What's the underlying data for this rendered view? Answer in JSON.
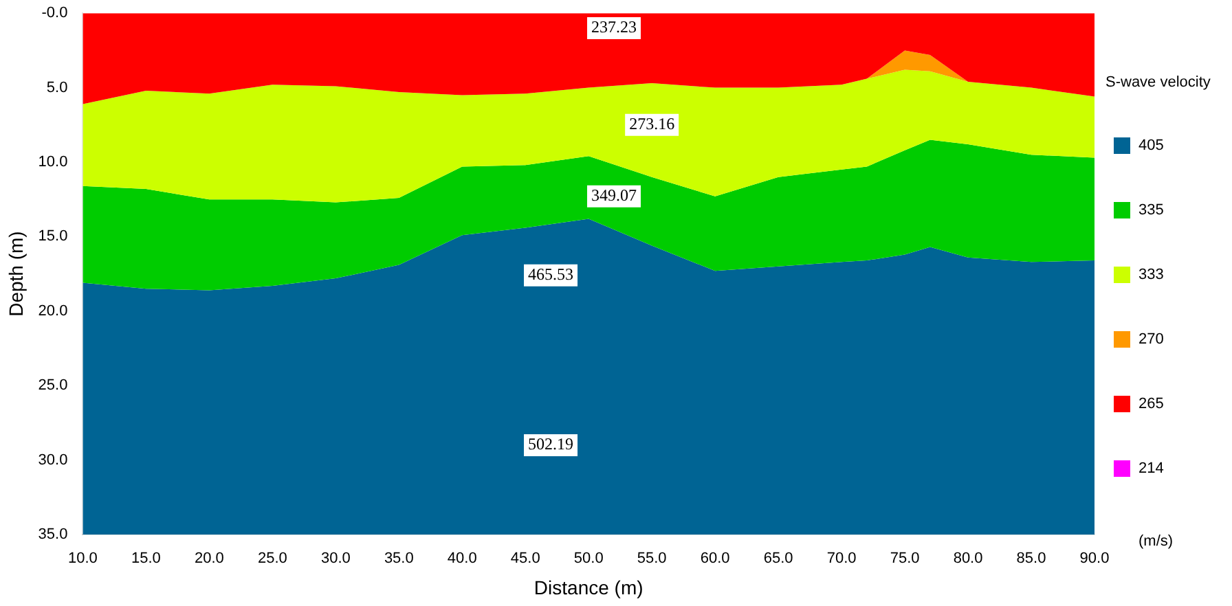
{
  "chart_data": {
    "type": "area",
    "stacked": true,
    "xlabel": "Distance (m)",
    "ylabel": "Depth (m)",
    "legend_title": "S-wave velocity",
    "legend": "right",
    "grid": false,
    "x": [
      10,
      15,
      20,
      25,
      30,
      35,
      40,
      45,
      50,
      55,
      60,
      65,
      70,
      72,
      75,
      77,
      80,
      85,
      90
    ],
    "xlim": [
      10,
      90
    ],
    "xticks": [
      {
        "value": 10,
        "label": "10.0"
      },
      {
        "value": 15,
        "label": "15.0"
      },
      {
        "value": 20,
        "label": "20.0"
      },
      {
        "value": 25,
        "label": "25.0"
      },
      {
        "value": 30,
        "label": "30.0"
      },
      {
        "value": 35,
        "label": "35.0"
      },
      {
        "value": 40,
        "label": "40.0"
      },
      {
        "value": 45,
        "label": "45.0"
      },
      {
        "value": 50,
        "label": "50.0"
      },
      {
        "value": 55,
        "label": "55.0"
      },
      {
        "value": 60,
        "label": "60.0"
      },
      {
        "value": 65,
        "label": "65.0"
      },
      {
        "value": 70,
        "label": "70.0"
      },
      {
        "value": 75,
        "label": "75.0"
      },
      {
        "value": 80,
        "label": "80.0"
      },
      {
        "value": 85,
        "label": "85.0"
      },
      {
        "value": 90,
        "label": "90.0"
      }
    ],
    "ylim": [
      35,
      0
    ],
    "yticks": [
      {
        "value": 0,
        "label": "-0.0"
      },
      {
        "value": 5,
        "label": "5.0"
      },
      {
        "value": 10,
        "label": "10.0"
      },
      {
        "value": 15,
        "label": "15.0"
      },
      {
        "value": 20,
        "label": "20.0"
      },
      {
        "value": 25,
        "label": "25.0"
      },
      {
        "value": 30,
        "label": "30.0"
      },
      {
        "value": 35,
        "label": "35.0"
      }
    ],
    "series": [
      {
        "name": "214",
        "color": "#ff00ff",
        "values": [
          null,
          null,
          null,
          null,
          null,
          null,
          null,
          null,
          null,
          null,
          null,
          null,
          null,
          null,
          null,
          null,
          null,
          null,
          null
        ]
      },
      {
        "name": "265",
        "color": "#ff0000",
        "values": [
          6.1,
          5.2,
          5.4,
          4.8,
          4.9,
          5.3,
          5.5,
          5.4,
          5.0,
          4.7,
          5.0,
          5.0,
          4.8,
          4.4,
          2.5,
          2.8,
          4.6,
          5.0,
          5.6
        ]
      },
      {
        "name": "270",
        "color": "#ff9900",
        "values": [
          0,
          0,
          0,
          0,
          0,
          0,
          0,
          0,
          0,
          0,
          0,
          0,
          0,
          0,
          1.3,
          1.1,
          0,
          0,
          0
        ]
      },
      {
        "name": "333",
        "color": "#ccff00",
        "values": [
          5.5,
          6.6,
          7.1,
          7.7,
          7.8,
          7.1,
          4.8,
          4.8,
          4.6,
          6.3,
          7.3,
          6.0,
          5.7,
          5.9,
          5.4,
          4.6,
          4.2,
          4.5,
          4.1
        ]
      },
      {
        "name": "335",
        "color": "#00cc00",
        "values": [
          6.5,
          6.7,
          6.1,
          5.8,
          5.1,
          4.5,
          4.6,
          4.2,
          4.2,
          4.6,
          5.0,
          6.0,
          6.2,
          6.3,
          7.0,
          7.2,
          7.6,
          7.2,
          6.9
        ]
      },
      {
        "name": "405",
        "color": "#006494",
        "values": [
          16.9,
          16.5,
          16.4,
          16.7,
          17.2,
          18.1,
          20.1,
          20.6,
          21.2,
          19.4,
          17.7,
          18.0,
          18.3,
          18.4,
          18.8,
          19.3,
          18.6,
          18.3,
          18.4
        ]
      }
    ],
    "annotations": [
      {
        "text": "237.23",
        "x": 52,
        "y": 1
      },
      {
        "text": "273.16",
        "x": 55,
        "y": 7.5
      },
      {
        "text": "349.07",
        "x": 52,
        "y": 12.3
      },
      {
        "text": "465.53",
        "x": 47,
        "y": 17.6
      },
      {
        "text": "502.19",
        "x": 47,
        "y": 29
      },
      "(m/s)"
    ]
  }
}
